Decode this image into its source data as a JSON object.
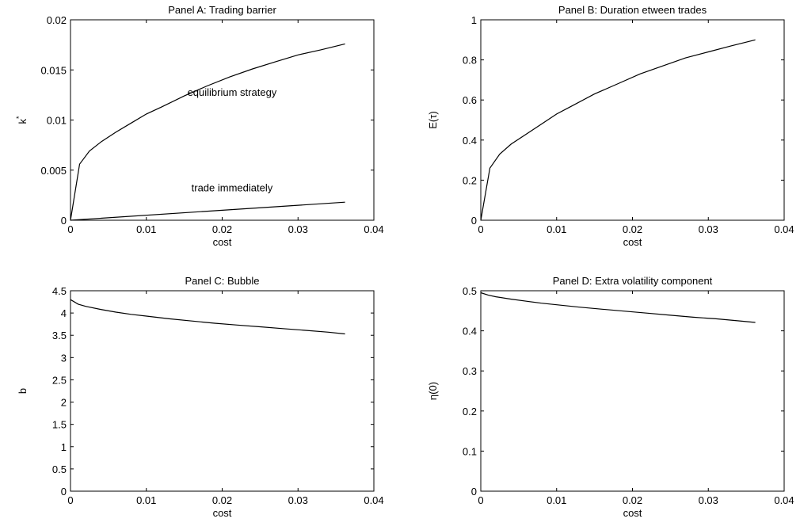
{
  "chart_data": [
    {
      "type": "line",
      "title": "Panel A: Trading barrier",
      "xlabel": "cost",
      "ylabel": "k",
      "ylabel_superscript": "*",
      "xlim": [
        0,
        0.04
      ],
      "ylim": [
        0,
        0.02
      ],
      "xticks": [
        0,
        0.01,
        0.02,
        0.03,
        0.04
      ],
      "xtick_labels": [
        "0",
        "0.01",
        "0.02",
        "0.03",
        "0.04"
      ],
      "yticks": [
        0,
        0.005,
        0.01,
        0.015,
        0.02
      ],
      "ytick_labels": [
        "0",
        "0.005",
        "0.01",
        "0.015",
        "0.02"
      ],
      "grid": false,
      "series": [
        {
          "x": [
            0,
            0.0012,
            0.0025,
            0.004,
            0.006,
            0.008,
            0.01,
            0.012,
            0.015,
            0.018,
            0.021,
            0.024,
            0.027,
            0.03,
            0.033,
            0.0362
          ],
          "values": [
            0,
            0.0056,
            0.0069,
            0.0078,
            0.0088,
            0.0097,
            0.0106,
            0.0113,
            0.0124,
            0.0134,
            0.0143,
            0.0151,
            0.0158,
            0.0165,
            0.017,
            0.0176
          ]
        },
        {
          "x": [
            0,
            0.0362
          ],
          "values": [
            0,
            0.0018
          ]
        }
      ],
      "annotations": [
        {
          "text": "equilibrium strategy",
          "x": 0.0213,
          "y": 0.0124
        },
        {
          "text": "trade immediately",
          "x": 0.0213,
          "y": 0.0029
        }
      ]
    },
    {
      "type": "line",
      "title": "Panel B: Duration  etween trades",
      "xlabel": "cost",
      "ylabel": "E(τ)",
      "xlim": [
        0,
        0.04
      ],
      "ylim": [
        0,
        1
      ],
      "xticks": [
        0,
        0.01,
        0.02,
        0.03,
        0.04
      ],
      "xtick_labels": [
        "0",
        "0.01",
        "0.02",
        "0.03",
        "0.04"
      ],
      "yticks": [
        0,
        0.2,
        0.4,
        0.6,
        0.8,
        1
      ],
      "ytick_labels": [
        "0",
        "0.2",
        "0.4",
        "0.6",
        "0.8",
        "1"
      ],
      "grid": false,
      "series": [
        {
          "x": [
            0,
            0.0012,
            0.0025,
            0.004,
            0.006,
            0.008,
            0.01,
            0.012,
            0.015,
            0.018,
            0.021,
            0.024,
            0.027,
            0.03,
            0.033,
            0.0362
          ],
          "values": [
            0,
            0.26,
            0.33,
            0.38,
            0.43,
            0.48,
            0.53,
            0.57,
            0.63,
            0.68,
            0.73,
            0.77,
            0.81,
            0.84,
            0.87,
            0.9
          ]
        }
      ]
    },
    {
      "type": "line",
      "title": "Panel C: Bubble",
      "xlabel": "cost",
      "ylabel": "b",
      "xlim": [
        0,
        0.04
      ],
      "ylim": [
        0,
        4.5
      ],
      "xticks": [
        0,
        0.01,
        0.02,
        0.03,
        0.04
      ],
      "xtick_labels": [
        "0",
        "0.01",
        "0.02",
        "0.03",
        "0.04"
      ],
      "yticks": [
        0,
        0.5,
        1,
        1.5,
        2,
        2.5,
        3,
        3.5,
        4,
        4.5
      ],
      "ytick_labels": [
        "0",
        "0.5",
        "1",
        "1.5",
        "2",
        "2.5",
        "3",
        "3.5",
        "4",
        "4.5"
      ],
      "grid": false,
      "series": [
        {
          "x": [
            0,
            0.001,
            0.002,
            0.004,
            0.006,
            0.008,
            0.01,
            0.013,
            0.016,
            0.019,
            0.022,
            0.025,
            0.028,
            0.031,
            0.034,
            0.0362
          ],
          "values": [
            4.3,
            4.2,
            4.15,
            4.08,
            4.02,
            3.97,
            3.93,
            3.87,
            3.82,
            3.77,
            3.73,
            3.69,
            3.65,
            3.61,
            3.57,
            3.53
          ]
        }
      ]
    },
    {
      "type": "line",
      "title": "Panel D: Extra volatility component",
      "xlabel": "cost",
      "ylabel": "η(0)",
      "xlim": [
        0,
        0.04
      ],
      "ylim": [
        0,
        0.5
      ],
      "xticks": [
        0,
        0.01,
        0.02,
        0.03,
        0.04
      ],
      "xtick_labels": [
        "0",
        "0.01",
        "0.02",
        "0.03",
        "0.04"
      ],
      "yticks": [
        0,
        0.1,
        0.2,
        0.3,
        0.4,
        0.5
      ],
      "ytick_labels": [
        "0",
        "0.1",
        "0.2",
        "0.3",
        "0.4",
        "0.5"
      ],
      "grid": false,
      "series": [
        {
          "x": [
            0,
            0.001,
            0.002,
            0.004,
            0.006,
            0.008,
            0.01,
            0.013,
            0.016,
            0.019,
            0.022,
            0.025,
            0.028,
            0.031,
            0.034,
            0.0362
          ],
          "values": [
            0.495,
            0.489,
            0.485,
            0.479,
            0.474,
            0.469,
            0.465,
            0.459,
            0.454,
            0.449,
            0.444,
            0.439,
            0.434,
            0.43,
            0.425,
            0.421
          ]
        }
      ]
    }
  ]
}
